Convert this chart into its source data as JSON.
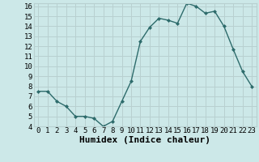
{
  "x": [
    0,
    1,
    2,
    3,
    4,
    5,
    6,
    7,
    8,
    9,
    10,
    11,
    12,
    13,
    14,
    15,
    16,
    17,
    18,
    19,
    20,
    21,
    22,
    23
  ],
  "y": [
    7.5,
    7.5,
    6.5,
    6.0,
    5.0,
    5.0,
    4.8,
    4.0,
    4.5,
    6.5,
    8.5,
    12.5,
    13.9,
    14.8,
    14.6,
    14.3,
    16.3,
    16.0,
    15.3,
    15.5,
    14.0,
    11.7,
    9.5,
    8.0
  ],
  "line_color": "#2d6b6b",
  "marker": "D",
  "marker_size": 2.0,
  "bg_color": "#cce8e8",
  "grid_color": "#b8d0d0",
  "xlabel": "Humidex (Indice chaleur)",
  "ylim": [
    4,
    16
  ],
  "xlim": [
    -0.5,
    23.5
  ],
  "yticks": [
    4,
    5,
    6,
    7,
    8,
    9,
    10,
    11,
    12,
    13,
    14,
    15,
    16
  ],
  "xticks": [
    0,
    1,
    2,
    3,
    4,
    5,
    6,
    7,
    8,
    9,
    10,
    11,
    12,
    13,
    14,
    15,
    16,
    17,
    18,
    19,
    20,
    21,
    22,
    23
  ],
  "tick_fontsize": 6.5,
  "xlabel_fontsize": 8.0,
  "linewidth": 1.0
}
